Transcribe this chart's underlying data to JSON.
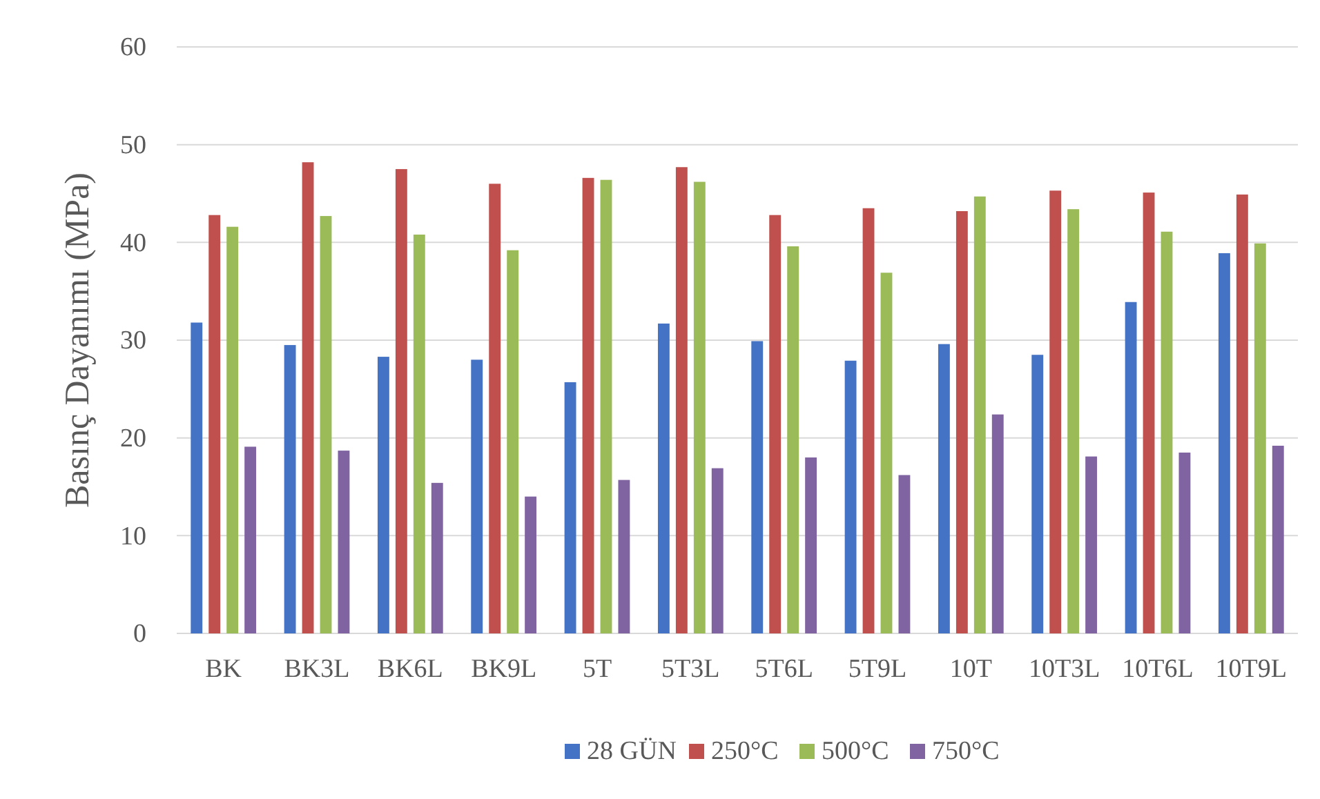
{
  "chart_data": {
    "type": "bar",
    "ylabel": "Basınç Dayanımı (MPa)",
    "categories": [
      "BK",
      "BK3L",
      "BK6L",
      "BK9L",
      "5T",
      "5T3L",
      "5T6L",
      "5T9L",
      "10T",
      "10T3L",
      "10T6L",
      "10T9L"
    ],
    "series": [
      {
        "name": "28 GÜN",
        "color": "#4472c4",
        "values": [
          31.8,
          29.5,
          28.3,
          28.0,
          25.7,
          31.7,
          29.9,
          27.9,
          29.6,
          28.5,
          33.9,
          38.9
        ]
      },
      {
        "name": "250°C",
        "color": "#c0504d",
        "values": [
          42.8,
          48.2,
          47.5,
          46.0,
          46.6,
          47.7,
          42.8,
          43.5,
          43.2,
          45.3,
          45.1,
          44.9
        ]
      },
      {
        "name": "500°C",
        "color": "#9bbb59",
        "values": [
          41.6,
          42.7,
          40.8,
          39.2,
          46.4,
          46.2,
          39.6,
          36.9,
          44.7,
          43.4,
          41.1,
          39.9
        ]
      },
      {
        "name": "750°C",
        "color": "#8064a2",
        "values": [
          19.1,
          18.7,
          15.4,
          14.0,
          15.7,
          16.9,
          18.0,
          16.2,
          22.4,
          18.1,
          18.5,
          19.2
        ]
      }
    ],
    "ylim": [
      0,
      60
    ],
    "yticks": [
      0,
      10,
      20,
      30,
      40,
      50,
      60
    ],
    "grid": "y",
    "legend": "bottom"
  }
}
